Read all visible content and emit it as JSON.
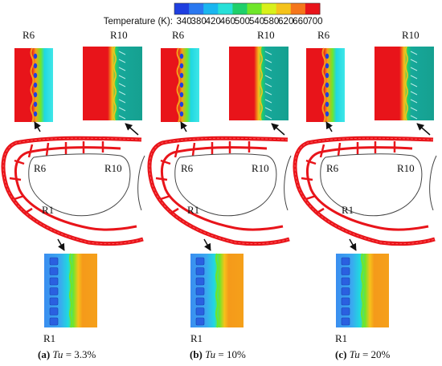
{
  "colorbar": {
    "title": "Temperature (K):",
    "ticks": [
      "340",
      "380",
      "420",
      "460",
      "500",
      "540",
      "580",
      "620",
      "660",
      "700"
    ],
    "colors": [
      "#1f3fe0",
      "#2a78f0",
      "#19b6f0",
      "#27e0d8",
      "#1ed06a",
      "#6fe62a",
      "#d8f01a",
      "#f5c31a",
      "#f5761a",
      "#e8141a"
    ]
  },
  "panels": [
    {
      "top_left_label": "R6",
      "top_right_label": "R10",
      "blade_labels": [
        "R6",
        "R10",
        "R1"
      ],
      "bottom_label": "R1",
      "caption_letter": "(a)",
      "caption_var": "Tu",
      "caption_value": " = 3.3%"
    },
    {
      "top_left_label": "R6",
      "top_right_label": "R10",
      "blade_labels": [
        "R6",
        "R10",
        "R1"
      ],
      "bottom_label": "R1",
      "caption_letter": "(b)",
      "caption_var": "Tu",
      "caption_value": " = 10%"
    },
    {
      "top_left_label": "R6",
      "top_right_label": "R10",
      "blade_labels": [
        "R6",
        "R10",
        "R1"
      ],
      "bottom_label": "R1",
      "caption_letter": "(c)",
      "caption_var": "Tu",
      "caption_value": " = 20%"
    }
  ],
  "palette": {
    "hot": "#e8141a",
    "teal": "#17a89a",
    "cyan": "#20d8e0",
    "orange": "#f59a1a",
    "blue_cold": "#3a8ef0",
    "outline": "#444444"
  }
}
